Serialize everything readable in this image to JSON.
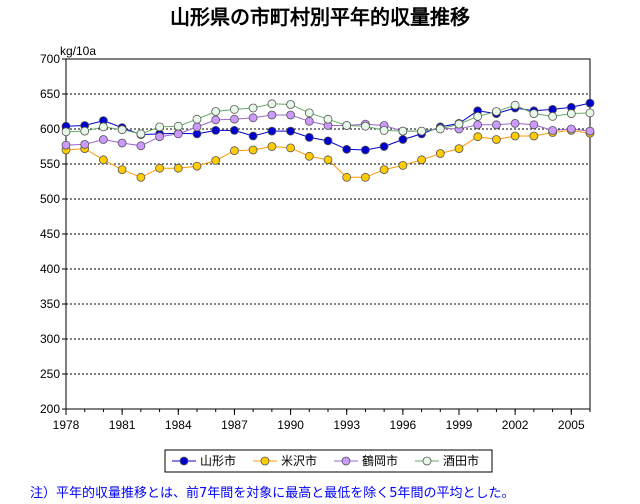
{
  "chart_data": {
    "type": "line",
    "title": "山形県の市町村別平年的収量推移",
    "ylabel": "kg/10a",
    "xlabel": "",
    "ylim": [
      200,
      700
    ],
    "yticks": [
      200,
      250,
      300,
      350,
      400,
      450,
      500,
      550,
      600,
      650,
      700
    ],
    "xlim": [
      1978,
      2006
    ],
    "xticks": [
      1978,
      1981,
      1984,
      1987,
      1990,
      1993,
      1996,
      1999,
      2002,
      2005
    ],
    "grid": true,
    "legend_position": "bottom",
    "x": [
      1978,
      1979,
      1980,
      1981,
      1982,
      1983,
      1984,
      1985,
      1986,
      1987,
      1988,
      1989,
      1990,
      1991,
      1992,
      1993,
      1994,
      1995,
      1996,
      1997,
      1998,
      1999,
      2000,
      2001,
      2002,
      2003,
      2004,
      2005,
      2006
    ],
    "series": [
      {
        "name": "山形市",
        "color": "#0000cc",
        "marker_fill": "#0000cc",
        "values": [
          604,
          605,
          612,
          602,
          592,
          593,
          594,
          593,
          598,
          598,
          590,
          597,
          597,
          588,
          583,
          571,
          570,
          575,
          585,
          593,
          603,
          608,
          626,
          622,
          630,
          626,
          628,
          631,
          637
        ]
      },
      {
        "name": "米沢市",
        "color": "#ff9900",
        "marker_fill": "#ffcc00",
        "values": [
          570,
          572,
          556,
          542,
          531,
          544,
          544,
          547,
          555,
          569,
          570,
          575,
          573,
          561,
          556,
          531,
          531,
          542,
          548,
          556,
          565,
          572,
          589,
          585,
          590,
          590,
          595,
          598,
          594
        ]
      },
      {
        "name": "鶴岡市",
        "color": "#9966cc",
        "marker_fill": "#cc99ff",
        "values": [
          577,
          578,
          585,
          580,
          576,
          589,
          593,
          603,
          613,
          614,
          616,
          620,
          620,
          611,
          605,
          605,
          607,
          605,
          597,
          597,
          601,
          600,
          606,
          606,
          608,
          606,
          598,
          600,
          597
        ]
      },
      {
        "name": "酒田市",
        "color": "#66aa66",
        "marker_fill": "#e8f8e8",
        "values": [
          596,
          597,
          603,
          599,
          593,
          603,
          604,
          614,
          625,
          628,
          630,
          636,
          635,
          623,
          614,
          605,
          604,
          598,
          597,
          597,
          600,
          607,
          618,
          625,
          634,
          622,
          618,
          622,
          623
        ]
      }
    ]
  },
  "note": "注）平年的収量推移とは、前7年間を対象に最高と最低を除く5年間の平均とした。"
}
